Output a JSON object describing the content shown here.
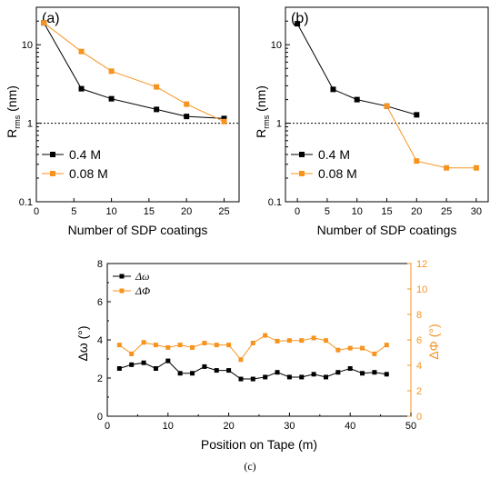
{
  "colors": {
    "black": "#000000",
    "orange": "#f7931e"
  },
  "chart_data": [
    {
      "type": "line",
      "panel_label": "(a)",
      "xlabel": "Number of SDP coatings",
      "ylabel_main": "R",
      "ylabel_sub": "rms",
      "ylabel_unit": " (nm)",
      "yscale": "log",
      "xlim": [
        0,
        27
      ],
      "ylim": [
        0.1,
        30
      ],
      "xticks": [
        0,
        5,
        10,
        15,
        20,
        25
      ],
      "yticks": [
        {
          "value": 0.1,
          "label": "0.1"
        },
        {
          "value": 1,
          "label": "1"
        },
        {
          "value": 10,
          "label": "10"
        }
      ],
      "reference_line": 1,
      "legend_position": "bottom-left",
      "series": [
        {
          "name": "0.4 M",
          "color": "#000000",
          "x": [
            1,
            6,
            10,
            16,
            20,
            25
          ],
          "y": [
            19,
            2.75,
            2.05,
            1.5,
            1.22,
            1.15
          ]
        },
        {
          "name": "0.08 M",
          "color": "#f7931e",
          "x": [
            1,
            6,
            10,
            16,
            20,
            25
          ],
          "y": [
            19,
            8.2,
            4.6,
            2.9,
            1.75,
            1.05
          ]
        }
      ]
    },
    {
      "type": "line",
      "panel_label": "(b)",
      "xlabel": "Number of SDP coatings",
      "ylabel_main": "R",
      "ylabel_sub": "rms",
      "ylabel_unit": " (nm)",
      "yscale": "log",
      "xlim": [
        -2,
        32
      ],
      "ylim": [
        0.1,
        30
      ],
      "xticks": [
        0,
        5,
        10,
        15,
        20,
        25,
        30
      ],
      "yticks": [
        {
          "value": 0.1,
          "label": "0.1"
        },
        {
          "value": 1,
          "label": "1"
        },
        {
          "value": 10,
          "label": "10"
        }
      ],
      "reference_line": 1,
      "legend_position": "bottom-left",
      "series": [
        {
          "name": "0.4 M",
          "color": "#000000",
          "x": [
            0,
            6,
            10,
            15,
            20
          ],
          "y": [
            18.5,
            2.7,
            2.0,
            1.65,
            1.28
          ]
        },
        {
          "name": "0.08 M",
          "color": "#f7931e",
          "x": [
            15,
            20,
            25,
            30
          ],
          "y": [
            1.65,
            0.33,
            0.27,
            0.27
          ]
        }
      ]
    },
    {
      "type": "line",
      "panel_label": "(c)",
      "xlabel": "Position on Tape (m)",
      "ylabel_left": "Δω (°)",
      "ylabel_right": "ΔΦ (°)",
      "xlim": [
        0,
        50
      ],
      "ylim_left": [
        0,
        8
      ],
      "ylim_right": [
        0,
        12
      ],
      "xticks": [
        0,
        10,
        20,
        30,
        40,
        50
      ],
      "yticks_left": [
        0,
        2,
        4,
        6,
        8
      ],
      "yticks_right": [
        0,
        2,
        4,
        6,
        8,
        10,
        12
      ],
      "legend_position": "top-left",
      "series": [
        {
          "name": "Δω",
          "axis": "left",
          "color": "#000000",
          "x": [
            2,
            4,
            6,
            8,
            10,
            12,
            14,
            16,
            18,
            20,
            22,
            24,
            26,
            28,
            30,
            32,
            34,
            36,
            38,
            40,
            42,
            44,
            46
          ],
          "y": [
            2.5,
            2.7,
            2.8,
            2.5,
            2.9,
            2.25,
            2.25,
            2.6,
            2.4,
            2.4,
            1.95,
            1.95,
            2.05,
            2.3,
            2.05,
            2.05,
            2.2,
            2.05,
            2.3,
            2.5,
            2.25,
            2.3,
            2.2
          ]
        },
        {
          "name": "ΔΦ",
          "axis": "right",
          "color": "#f7931e",
          "x": [
            2,
            4,
            6,
            8,
            10,
            12,
            14,
            16,
            18,
            20,
            22,
            24,
            26,
            28,
            30,
            32,
            34,
            36,
            38,
            40,
            42,
            44,
            46
          ],
          "y": [
            5.6,
            4.9,
            5.8,
            5.6,
            5.4,
            5.6,
            5.4,
            5.75,
            5.6,
            5.6,
            4.45,
            5.75,
            6.35,
            5.9,
            5.95,
            5.95,
            6.15,
            5.95,
            5.2,
            5.35,
            5.35,
            4.9,
            5.6
          ]
        }
      ]
    }
  ],
  "caption": "(c)"
}
